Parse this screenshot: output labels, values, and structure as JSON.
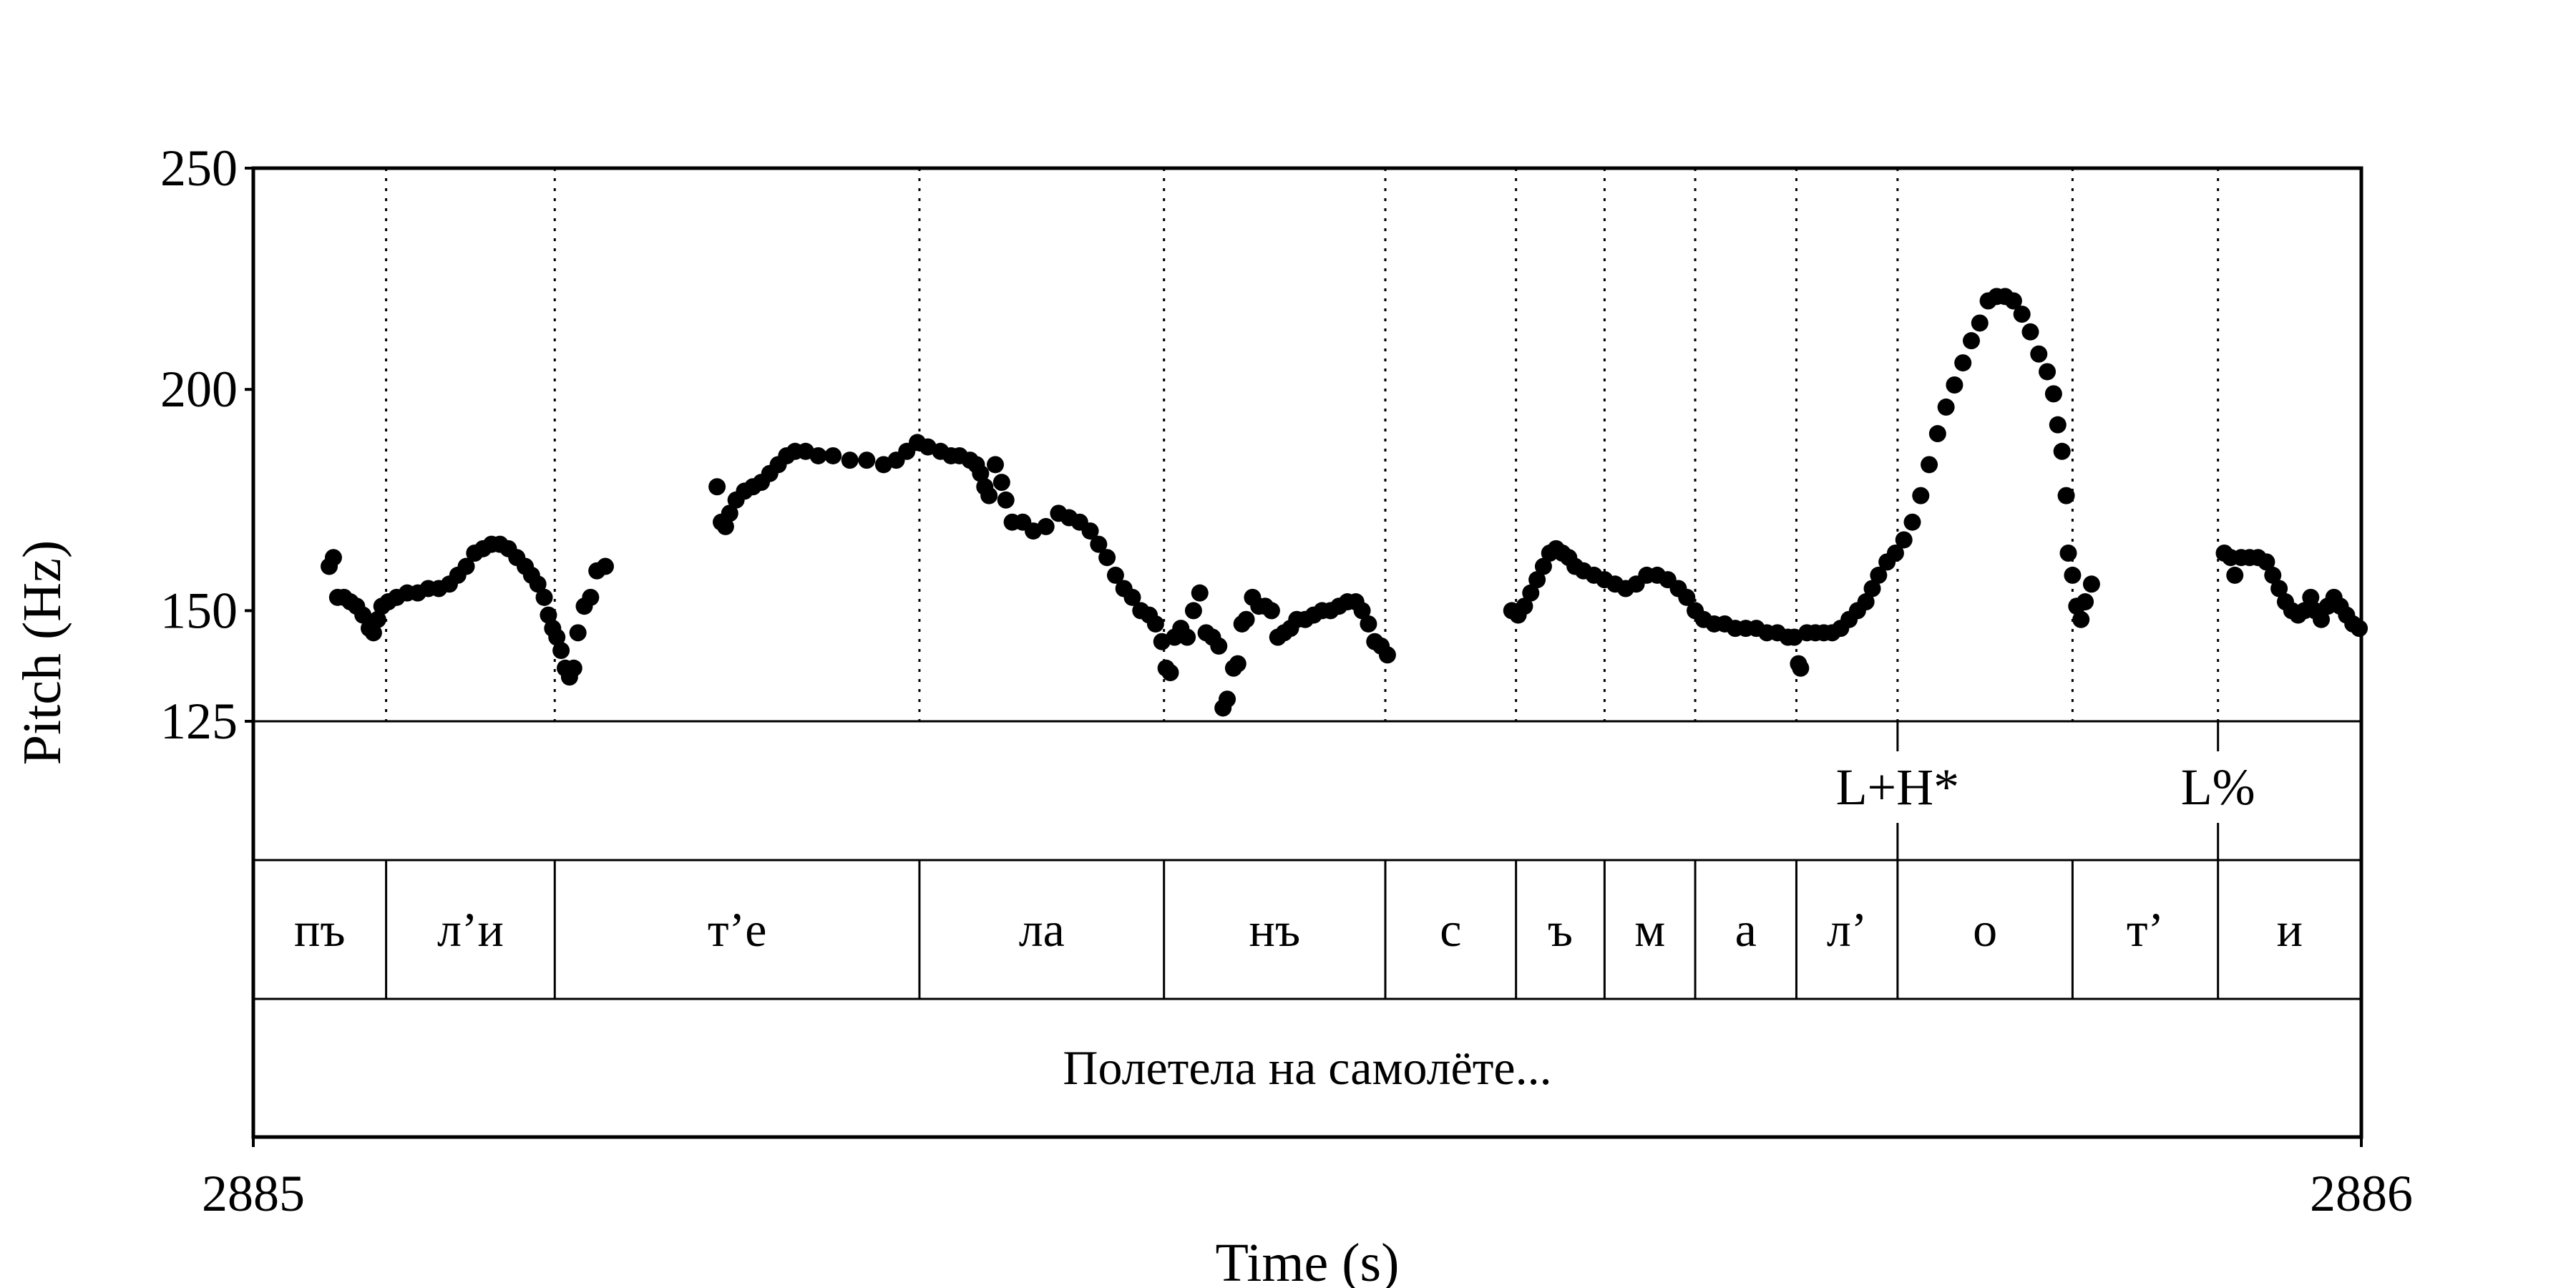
{
  "chart_data": {
    "type": "scatter",
    "title": "",
    "xlabel": "Time (s)",
    "ylabel": "Pitch (Hz)",
    "xlim": [
      2885,
      2886
    ],
    "ylim": [
      125,
      250
    ],
    "xticks": [
      "2885",
      "2886"
    ],
    "yticks": [
      "250",
      "200",
      "150",
      "125"
    ],
    "yticks_values": [
      250,
      200,
      150,
      125
    ],
    "syllable_boundaries": [
      2885.063,
      2885.143,
      2885.316,
      2885.432,
      2885.537,
      2885.599,
      2885.641,
      2885.684,
      2885.732,
      2885.78,
      2885.863,
      2885.932,
      2886.0
    ],
    "syllables": [
      {
        "label": "пъ",
        "start": 2885.0,
        "end": 2885.063
      },
      {
        "label": "л’и",
        "start": 2885.063,
        "end": 2885.143
      },
      {
        "label": "т’е",
        "start": 2885.143,
        "end": 2885.316
      },
      {
        "label": "ла",
        "start": 2885.316,
        "end": 2885.432
      },
      {
        "label": "нъ",
        "start": 2885.432,
        "end": 2885.537
      },
      {
        "label": "с",
        "start": 2885.537,
        "end": 2885.599
      },
      {
        "label": "ъ",
        "start": 2885.599,
        "end": 2885.641
      },
      {
        "label": "м",
        "start": 2885.641,
        "end": 2885.684
      },
      {
        "label": "а",
        "start": 2885.684,
        "end": 2885.732
      },
      {
        "label": "л’",
        "start": 2885.732,
        "end": 2885.78
      },
      {
        "label": "о",
        "start": 2885.78,
        "end": 2885.863
      },
      {
        "label": "т’",
        "start": 2885.863,
        "end": 2885.932
      },
      {
        "label": "и",
        "start": 2885.932,
        "end": 2886.0
      }
    ],
    "tones": [
      {
        "label": "L+H*",
        "time": 2885.78
      },
      {
        "label": "L%",
        "time": 2885.932
      }
    ],
    "sentence": "Полетела на самолёте...",
    "pitch_points": [
      [
        2885.036,
        160
      ],
      [
        2885.038,
        162
      ],
      [
        2885.04,
        153
      ],
      [
        2885.043,
        153
      ],
      [
        2885.046,
        152
      ],
      [
        2885.049,
        151
      ],
      [
        2885.052,
        149
      ],
      [
        2885.055,
        146
      ],
      [
        2885.057,
        145
      ],
      [
        2885.059,
        148
      ],
      [
        2885.061,
        151
      ],
      [
        2885.064,
        152
      ],
      [
        2885.068,
        153
      ],
      [
        2885.073,
        154
      ],
      [
        2885.078,
        154
      ],
      [
        2885.083,
        155
      ],
      [
        2885.088,
        155
      ],
      [
        2885.093,
        156
      ],
      [
        2885.097,
        158
      ],
      [
        2885.101,
        160
      ],
      [
        2885.105,
        163
      ],
      [
        2885.109,
        164
      ],
      [
        2885.113,
        165
      ],
      [
        2885.117,
        165
      ],
      [
        2885.121,
        164
      ],
      [
        2885.125,
        162
      ],
      [
        2885.129,
        160
      ],
      [
        2885.132,
        158
      ],
      [
        2885.135,
        156
      ],
      [
        2885.138,
        153
      ],
      [
        2885.14,
        149
      ],
      [
        2885.142,
        146
      ],
      [
        2885.144,
        144
      ],
      [
        2885.146,
        141
      ],
      [
        2885.148,
        137
      ],
      [
        2885.15,
        135
      ],
      [
        2885.152,
        137
      ],
      [
        2885.154,
        145
      ],
      [
        2885.157,
        151
      ],
      [
        2885.16,
        153
      ],
      [
        2885.163,
        159
      ],
      [
        2885.167,
        160
      ],
      [
        2885.22,
        178
      ],
      [
        2885.222,
        170
      ],
      [
        2885.224,
        169
      ],
      [
        2885.226,
        172
      ],
      [
        2885.229,
        175
      ],
      [
        2885.233,
        177
      ],
      [
        2885.237,
        178
      ],
      [
        2885.241,
        179
      ],
      [
        2885.245,
        181
      ],
      [
        2885.249,
        183
      ],
      [
        2885.253,
        185
      ],
      [
        2885.257,
        186
      ],
      [
        2885.262,
        186
      ],
      [
        2885.268,
        185
      ],
      [
        2885.275,
        185
      ],
      [
        2885.283,
        184
      ],
      [
        2885.291,
        184
      ],
      [
        2885.299,
        183
      ],
      [
        2885.305,
        184
      ],
      [
        2885.31,
        186
      ],
      [
        2885.315,
        188
      ],
      [
        2885.32,
        187
      ],
      [
        2885.326,
        186
      ],
      [
        2885.331,
        185
      ],
      [
        2885.335,
        185
      ],
      [
        2885.34,
        184
      ],
      [
        2885.343,
        183
      ],
      [
        2885.345,
        181
      ],
      [
        2885.347,
        178
      ],
      [
        2885.349,
        176
      ],
      [
        2885.352,
        183
      ],
      [
        2885.355,
        179
      ],
      [
        2885.357,
        175
      ],
      [
        2885.36,
        170
      ],
      [
        2885.365,
        170
      ],
      [
        2885.37,
        168
      ],
      [
        2885.376,
        169
      ],
      [
        2885.382,
        172
      ],
      [
        2885.387,
        171
      ],
      [
        2885.392,
        170
      ],
      [
        2885.397,
        168
      ],
      [
        2885.401,
        165
      ],
      [
        2885.405,
        162
      ],
      [
        2885.409,
        158
      ],
      [
        2885.413,
        155
      ],
      [
        2885.417,
        153
      ],
      [
        2885.421,
        150
      ],
      [
        2885.425,
        149
      ],
      [
        2885.428,
        147
      ],
      [
        2885.431,
        143
      ],
      [
        2885.433,
        137
      ],
      [
        2885.435,
        136
      ],
      [
        2885.437,
        144
      ],
      [
        2885.44,
        146
      ],
      [
        2885.443,
        144
      ],
      [
        2885.446,
        150
      ],
      [
        2885.449,
        154
      ],
      [
        2885.452,
        145
      ],
      [
        2885.455,
        144
      ],
      [
        2885.458,
        142
      ],
      [
        2885.46,
        128
      ],
      [
        2885.462,
        130
      ],
      [
        2885.465,
        137
      ],
      [
        2885.467,
        138
      ],
      [
        2885.469,
        147
      ],
      [
        2885.471,
        148
      ],
      [
        2885.474,
        153
      ],
      [
        2885.477,
        151
      ],
      [
        2885.48,
        151
      ],
      [
        2885.483,
        150
      ],
      [
        2885.486,
        144
      ],
      [
        2885.489,
        145
      ],
      [
        2885.492,
        146
      ],
      [
        2885.495,
        148
      ],
      [
        2885.499,
        148
      ],
      [
        2885.503,
        149
      ],
      [
        2885.507,
        150
      ],
      [
        2885.511,
        150
      ],
      [
        2885.515,
        151
      ],
      [
        2885.519,
        152
      ],
      [
        2885.523,
        152
      ],
      [
        2885.526,
        150
      ],
      [
        2885.529,
        147
      ],
      [
        2885.532,
        143
      ],
      [
        2885.535,
        142
      ],
      [
        2885.538,
        140
      ],
      [
        2885.597,
        150
      ],
      [
        2885.6,
        149
      ],
      [
        2885.603,
        151
      ],
      [
        2885.606,
        154
      ],
      [
        2885.609,
        157
      ],
      [
        2885.612,
        160
      ],
      [
        2885.615,
        163
      ],
      [
        2885.618,
        164
      ],
      [
        2885.621,
        163
      ],
      [
        2885.624,
        162
      ],
      [
        2885.627,
        160
      ],
      [
        2885.631,
        159
      ],
      [
        2885.636,
        158
      ],
      [
        2885.641,
        157
      ],
      [
        2885.646,
        156
      ],
      [
        2885.651,
        155
      ],
      [
        2885.656,
        156
      ],
      [
        2885.661,
        158
      ],
      [
        2885.666,
        158
      ],
      [
        2885.671,
        157
      ],
      [
        2885.676,
        155
      ],
      [
        2885.68,
        153
      ],
      [
        2885.684,
        150
      ],
      [
        2885.688,
        148
      ],
      [
        2885.693,
        147
      ],
      [
        2885.698,
        147
      ],
      [
        2885.703,
        146
      ],
      [
        2885.708,
        146
      ],
      [
        2885.713,
        146
      ],
      [
        2885.718,
        145
      ],
      [
        2885.723,
        145
      ],
      [
        2885.728,
        144
      ],
      [
        2885.731,
        144
      ],
      [
        2885.733,
        138
      ],
      [
        2885.734,
        137
      ],
      [
        2885.737,
        145
      ],
      [
        2885.741,
        145
      ],
      [
        2885.745,
        145
      ],
      [
        2885.749,
        145
      ],
      [
        2885.753,
        146
      ],
      [
        2885.757,
        148
      ],
      [
        2885.761,
        150
      ],
      [
        2885.765,
        152
      ],
      [
        2885.768,
        155
      ],
      [
        2885.771,
        158
      ],
      [
        2885.775,
        161
      ],
      [
        2885.779,
        163
      ],
      [
        2885.783,
        166
      ],
      [
        2885.787,
        170
      ],
      [
        2885.791,
        176
      ],
      [
        2885.795,
        183
      ],
      [
        2885.799,
        190
      ],
      [
        2885.803,
        196
      ],
      [
        2885.807,
        201
      ],
      [
        2885.811,
        206
      ],
      [
        2885.815,
        211
      ],
      [
        2885.819,
        215
      ],
      [
        2885.823,
        220
      ],
      [
        2885.827,
        221
      ],
      [
        2885.831,
        221
      ],
      [
        2885.835,
        220
      ],
      [
        2885.839,
        217
      ],
      [
        2885.843,
        213
      ],
      [
        2885.847,
        208
      ],
      [
        2885.851,
        204
      ],
      [
        2885.854,
        199
      ],
      [
        2885.856,
        192
      ],
      [
        2885.858,
        186
      ],
      [
        2885.86,
        176
      ],
      [
        2885.861,
        163
      ],
      [
        2885.863,
        158
      ],
      [
        2885.865,
        151
      ],
      [
        2885.867,
        148
      ],
      [
        2885.869,
        152
      ],
      [
        2885.872,
        156
      ],
      [
        2885.935,
        163
      ],
      [
        2885.938,
        162
      ],
      [
        2885.94,
        158
      ],
      [
        2885.943,
        162
      ],
      [
        2885.947,
        162
      ],
      [
        2885.951,
        162
      ],
      [
        2885.955,
        161
      ],
      [
        2885.958,
        158
      ],
      [
        2885.961,
        155
      ],
      [
        2885.964,
        152
      ],
      [
        2885.967,
        150
      ],
      [
        2885.97,
        149
      ],
      [
        2885.973,
        150
      ],
      [
        2885.976,
        153
      ],
      [
        2885.978,
        150
      ],
      [
        2885.981,
        148
      ],
      [
        2885.984,
        151
      ],
      [
        2885.987,
        153
      ],
      [
        2885.99,
        151
      ],
      [
        2885.993,
        149
      ],
      [
        2885.996,
        147
      ],
      [
        2885.999,
        146
      ]
    ]
  }
}
